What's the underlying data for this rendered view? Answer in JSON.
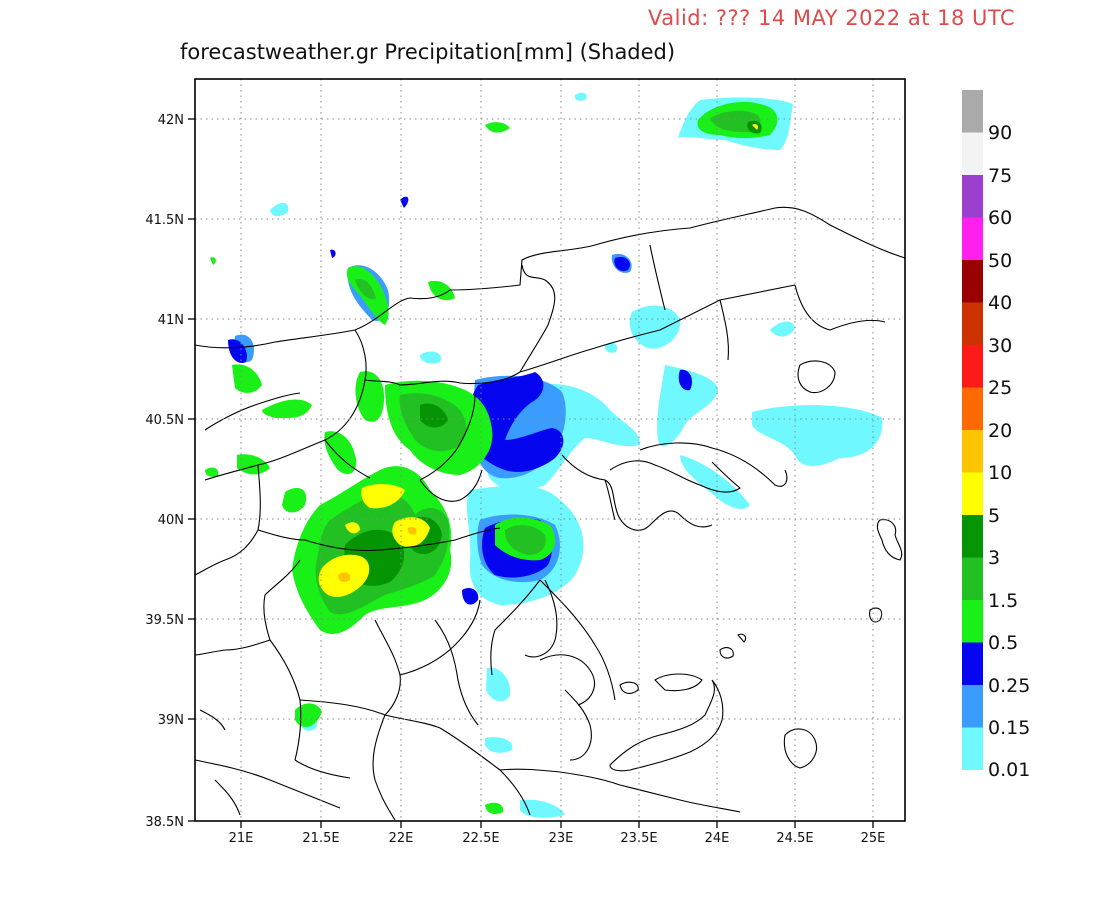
{
  "header": {
    "valid_text": "Valid: ??? 14 MAY 2022 at 18 UTC",
    "title": "forecastweather.gr Precipitation[mm] (Shaded)"
  },
  "map": {
    "lon_range": [
      20.7,
      25.2
    ],
    "lat_range": [
      38.5,
      42.2
    ],
    "lat_ticks": [
      "42N",
      "41.5N",
      "41N",
      "40.5N",
      "40N",
      "39.5N",
      "39N",
      "38.5N"
    ],
    "lon_ticks": [
      "21E",
      "21.5E",
      "22E",
      "22.5E",
      "23E",
      "23.5E",
      "24E",
      "24.5E",
      "25E"
    ],
    "grid": "dotted"
  },
  "colorbar": {
    "labels": [
      "90",
      "75",
      "60",
      "50",
      "40",
      "30",
      "25",
      "20",
      "10",
      "5",
      "3",
      "1.5",
      "0.5",
      "0.25",
      "0.15",
      "0.01"
    ],
    "colors": [
      "#aaaaaa",
      "#f3f3f3",
      "#9b3fcf",
      "#ff20ee",
      "#990000",
      "#cc3300",
      "#ff1a1a",
      "#ff6a00",
      "#ffc400",
      "#ffff00",
      "#049404",
      "#22c022",
      "#18f018",
      "#0505f0",
      "#3a9cff",
      "#6ff8ff"
    ]
  },
  "colors": {
    "light_cyan": "#6ff8ff",
    "light_blue": "#3a9cff",
    "blue": "#0505f0",
    "bright_green": "#18f018",
    "green": "#22c022",
    "dark_green": "#049404",
    "yellow": "#ffff00",
    "orange": "#ffc400"
  }
}
